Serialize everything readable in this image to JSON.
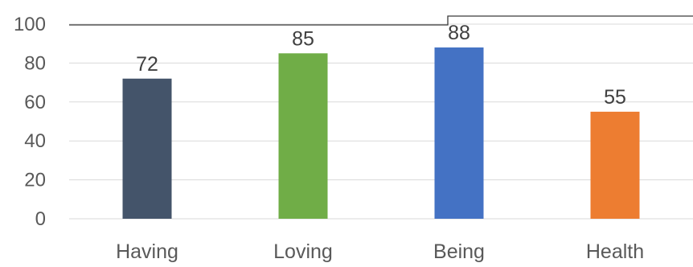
{
  "chart_data": {
    "type": "bar",
    "categories": [
      "Having",
      "Loving",
      "Being",
      "Health"
    ],
    "values": [
      72,
      85,
      88,
      55
    ],
    "colors": [
      "#44546a",
      "#70ad47",
      "#4472c4",
      "#ed7d31"
    ],
    "ylim": [
      0,
      100
    ],
    "yticks": [
      "0",
      "20",
      "40",
      "60",
      "80",
      "100"
    ],
    "data_labels": [
      "72",
      "85",
      "88",
      "55"
    ],
    "grid": true,
    "legend": "none"
  }
}
